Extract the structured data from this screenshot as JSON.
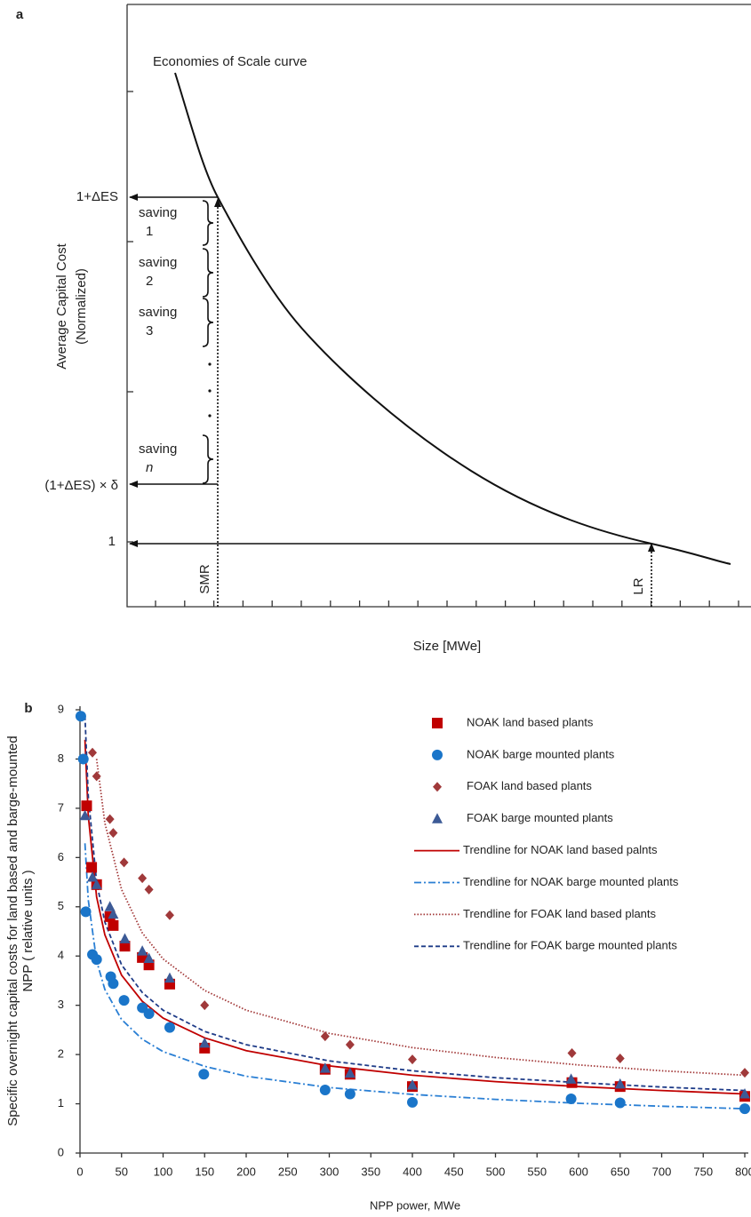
{
  "chart_data": [
    {
      "type": "schematic",
      "panel": "a",
      "title": "Economies of Scale curve",
      "ylabel": [
        "Average Capital Cost",
        "(Normalized)"
      ],
      "xlabel": "Size [MWe]",
      "ytick_labels": [
        "1+ΔES",
        "(1+ΔES) × δ",
        "1"
      ],
      "savings": [
        {
          "label": "saving",
          "index": "1"
        },
        {
          "label": "saving",
          "index": "2"
        },
        {
          "label": "saving",
          "index": "3"
        },
        {
          "label": "saving",
          "index": "n"
        }
      ],
      "markers": [
        "SMR",
        "LR"
      ]
    },
    {
      "type": "scatter",
      "panel": "b",
      "ylabel": [
        "Specific overnight capital costs for land based and barge-mounted",
        "NPP ( relative units )"
      ],
      "xlabel": "NPP power, MWe",
      "xlim": [
        0,
        800
      ],
      "xticks": [
        0,
        50,
        100,
        150,
        200,
        250,
        300,
        350,
        400,
        450,
        500,
        550,
        600,
        650,
        700,
        750,
        800
      ],
      "ylim": [
        0,
        9
      ],
      "yticks": [
        0,
        1,
        2,
        3,
        4,
        5,
        6,
        7,
        8,
        9
      ],
      "grid": false,
      "series": [
        {
          "name": "NOAK land based plants",
          "color": "#c00000",
          "marker": "square",
          "x": [
            8,
            14,
            20,
            36,
            40,
            54,
            75,
            83,
            108,
            150,
            295,
            325,
            400,
            592,
            650,
            800
          ],
          "values": [
            7.05,
            5.8,
            5.45,
            4.8,
            4.62,
            4.2,
            3.97,
            3.82,
            3.43,
            2.13,
            1.7,
            1.6,
            1.35,
            1.43,
            1.35,
            1.15
          ]
        },
        {
          "name": "NOAK barge mounted plants",
          "color": "#1a75c9",
          "marker": "circle",
          "x": [
            1,
            4,
            7,
            15,
            20,
            37,
            40,
            53,
            75,
            83,
            108,
            149,
            295,
            325,
            400,
            591,
            650,
            800
          ],
          "values": [
            8.87,
            8.0,
            4.9,
            4.03,
            3.93,
            3.58,
            3.44,
            3.1,
            2.95,
            2.83,
            2.55,
            1.6,
            1.28,
            1.2,
            1.03,
            1.1,
            1.02,
            0.9
          ]
        },
        {
          "name": "FOAK land based plants",
          "color": "#a0393a",
          "marker": "diamond",
          "x": [
            15,
            20,
            36,
            40,
            53,
            75,
            83,
            108,
            150,
            295,
            325,
            400,
            592,
            650,
            800
          ],
          "values": [
            8.13,
            7.65,
            6.78,
            6.5,
            5.9,
            5.58,
            5.35,
            4.83,
            3.0,
            2.37,
            2.2,
            1.9,
            2.03,
            1.92,
            1.63
          ]
        },
        {
          "name": "FOAK barge mounted plants",
          "color": "#3c5a96",
          "marker": "triangle",
          "x": [
            6,
            15,
            20,
            36,
            40,
            54,
            75,
            83,
            108,
            150,
            295,
            325,
            400,
            591,
            650,
            800
          ],
          "values": [
            6.85,
            5.6,
            5.45,
            5.0,
            4.85,
            4.35,
            4.1,
            3.95,
            3.55,
            2.23,
            1.72,
            1.62,
            1.38,
            1.5,
            1.4,
            1.2
          ]
        },
        {
          "name": "Trendline for NOAK land based palnts",
          "color": "#c00000",
          "line": "solid",
          "x": [
            6,
            10,
            20,
            30,
            50,
            75,
            100,
            150,
            200,
            300,
            400,
            500,
            600,
            700,
            800
          ],
          "values": [
            8.39,
            6.85,
            5.2,
            4.43,
            3.61,
            3.08,
            2.74,
            2.34,
            2.08,
            1.77,
            1.58,
            1.45,
            1.35,
            1.27,
            1.2
          ]
        },
        {
          "name": "Trendline for NOAK barge mounted plants",
          "color": "#2a7fd4",
          "line": "dashdot",
          "x": [
            6,
            10,
            20,
            30,
            50,
            75,
            100,
            150,
            200,
            300,
            400,
            500,
            600,
            700,
            800
          ],
          "values": [
            6.29,
            5.14,
            3.9,
            3.32,
            2.71,
            2.31,
            2.06,
            1.76,
            1.56,
            1.33,
            1.19,
            1.09,
            1.01,
            0.95,
            0.9
          ]
        },
        {
          "name": "Trendline for FOAK land based plants",
          "color": "#a33a3a",
          "line": "dotted",
          "x": [
            6,
            10,
            20,
            30,
            50,
            75,
            100,
            150,
            200,
            300,
            400,
            500,
            600,
            700,
            800
          ],
          "values": [
            null,
            null,
            8.0,
            6.7,
            5.35,
            4.47,
            3.94,
            3.3,
            2.9,
            2.43,
            2.14,
            1.94,
            1.79,
            1.67,
            1.58
          ]
        },
        {
          "name": "Trendline for FOAK barge mounted plants",
          "color": "#1f3c88",
          "line": "dashed",
          "x": [
            6,
            10,
            20,
            30,
            50,
            75,
            100,
            150,
            200,
            300,
            400,
            500,
            600,
            700,
            800
          ],
          "values": [
            8.88,
            7.25,
            5.5,
            4.69,
            3.82,
            3.26,
            2.9,
            2.47,
            2.2,
            1.87,
            1.67,
            1.53,
            1.43,
            1.34,
            1.27
          ]
        }
      ]
    }
  ]
}
